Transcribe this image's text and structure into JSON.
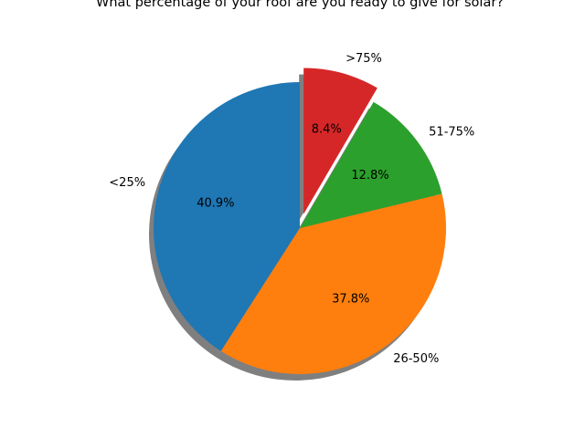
{
  "chart_data": {
    "type": "pie",
    "title": "What percentage of your roof are you ready to give for solar?",
    "slices": [
      {
        "label": "<25%",
        "value": 40.9,
        "pct_label": "40.9%",
        "color": "#1f77b4",
        "explode": 0
      },
      {
        "label": "26-50%",
        "value": 37.8,
        "pct_label": "37.8%",
        "color": "#ff7f0e",
        "explode": 0
      },
      {
        "label": "51-75%",
        "value": 12.8,
        "pct_label": "12.8%",
        "color": "#2ca02c",
        "explode": 0
      },
      {
        "label": ">75%",
        "value": 8.4,
        "pct_label": "8.4%",
        "color": "#d62728",
        "explode": 0.1
      }
    ],
    "start_angle": 90,
    "direction": "counterclockwise",
    "shadow": true
  }
}
